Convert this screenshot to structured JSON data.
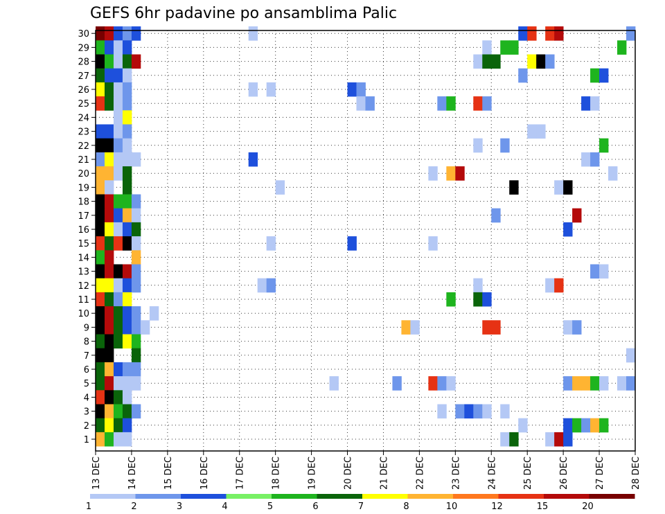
{
  "chart_data": {
    "type": "heatmap",
    "title": "GEFS 6hr padavine po ansamblima Palic",
    "y_labels": [
      "1",
      "2",
      "3",
      "4",
      "5",
      "6",
      "7",
      "8",
      "9",
      "10",
      "11",
      "12",
      "13",
      "14",
      "15",
      "16",
      "17",
      "18",
      "19",
      "20",
      "21",
      "22",
      "23",
      "24",
      "25",
      "26",
      "27",
      "28",
      "29",
      "30"
    ],
    "x_labels": [
      "13 DEC",
      "14 DEC",
      "15 DEC",
      "16 DEC",
      "17 DEC",
      "18 DEC",
      "19 DEC",
      "20 DEC",
      "21 DEC",
      "22 DEC",
      "23 DEC",
      "24 DEC",
      "25 DEC",
      "26 DEC",
      "27 DEC",
      "28 DEC"
    ],
    "x_range_days": [
      13,
      28
    ],
    "steps_per_day": 4,
    "grid": "dotted",
    "colorbar": {
      "labels": [
        "1",
        "2",
        "3",
        "4",
        "5",
        "6",
        "7",
        "8",
        "10",
        "12",
        "15",
        "20"
      ],
      "colors": [
        "#b4c8f5",
        "#6e96eb",
        "#1e50dc",
        "#78f064",
        "#1eb41e",
        "#0a640a",
        "#ffff00",
        "#ffb432",
        "#ff781e",
        "#e63214",
        "#b40a0a",
        "#780000"
      ]
    },
    "cells": [
      [
        30,
        0,
        12
      ],
      [
        30,
        1,
        11
      ],
      [
        30,
        2,
        3
      ],
      [
        30,
        3,
        2
      ],
      [
        30,
        4,
        3
      ],
      [
        30,
        17,
        1
      ],
      [
        30,
        47,
        3
      ],
      [
        30,
        48,
        10
      ],
      [
        30,
        50,
        10
      ],
      [
        30,
        51,
        11
      ],
      [
        30,
        59,
        2
      ],
      [
        29,
        0,
        5
      ],
      [
        29,
        1,
        3
      ],
      [
        29,
        2,
        1
      ],
      [
        29,
        3,
        3
      ],
      [
        29,
        43,
        1
      ],
      [
        29,
        45,
        5
      ],
      [
        29,
        46,
        5
      ],
      [
        29,
        58,
        5
      ],
      [
        28,
        0,
        13
      ],
      [
        28,
        1,
        5
      ],
      [
        28,
        2,
        1
      ],
      [
        28,
        3,
        6
      ],
      [
        28,
        4,
        11
      ],
      [
        28,
        42,
        1
      ],
      [
        28,
        43,
        6
      ],
      [
        28,
        44,
        6
      ],
      [
        28,
        48,
        7
      ],
      [
        28,
        49,
        14
      ],
      [
        28,
        50,
        2
      ],
      [
        27,
        0,
        6
      ],
      [
        27,
        1,
        3
      ],
      [
        27,
        2,
        3
      ],
      [
        27,
        3,
        1
      ],
      [
        27,
        47,
        2
      ],
      [
        27,
        55,
        5
      ],
      [
        27,
        56,
        3
      ],
      [
        26,
        0,
        7
      ],
      [
        26,
        1,
        6
      ],
      [
        26,
        2,
        1
      ],
      [
        26,
        3,
        2
      ],
      [
        26,
        17,
        1
      ],
      [
        26,
        19,
        1
      ],
      [
        26,
        28,
        3
      ],
      [
        26,
        29,
        2
      ],
      [
        25,
        0,
        10
      ],
      [
        25,
        1,
        6
      ],
      [
        25,
        2,
        1
      ],
      [
        25,
        3,
        2
      ],
      [
        25,
        29,
        1
      ],
      [
        25,
        30,
        2
      ],
      [
        25,
        38,
        2
      ],
      [
        25,
        39,
        5
      ],
      [
        25,
        42,
        10
      ],
      [
        25,
        43,
        2
      ],
      [
        25,
        54,
        3
      ],
      [
        25,
        55,
        1
      ],
      [
        24,
        2,
        1
      ],
      [
        24,
        3,
        7
      ],
      [
        23,
        0,
        3
      ],
      [
        23,
        1,
        3
      ],
      [
        23,
        2,
        1
      ],
      [
        23,
        3,
        2
      ],
      [
        23,
        48,
        1
      ],
      [
        23,
        49,
        1
      ],
      [
        22,
        0,
        13
      ],
      [
        22,
        1,
        13
      ],
      [
        22,
        2,
        2
      ],
      [
        22,
        3,
        1
      ],
      [
        22,
        42,
        1
      ],
      [
        22,
        45,
        2
      ],
      [
        22,
        56,
        5
      ],
      [
        21,
        0,
        2
      ],
      [
        21,
        1,
        7
      ],
      [
        21,
        2,
        1
      ],
      [
        21,
        3,
        1
      ],
      [
        21,
        4,
        1
      ],
      [
        21,
        17,
        3
      ],
      [
        21,
        54,
        1
      ],
      [
        21,
        55,
        2
      ],
      [
        20,
        0,
        8
      ],
      [
        20,
        1,
        8
      ],
      [
        20,
        2,
        1
      ],
      [
        20,
        3,
        6
      ],
      [
        20,
        37,
        1
      ],
      [
        20,
        39,
        8
      ],
      [
        20,
        40,
        11
      ],
      [
        20,
        57,
        1
      ],
      [
        19,
        0,
        8
      ],
      [
        19,
        1,
        1
      ],
      [
        19,
        3,
        6
      ],
      [
        19,
        20,
        1
      ],
      [
        19,
        46,
        13
      ],
      [
        19,
        51,
        1
      ],
      [
        19,
        52,
        13
      ],
      [
        18,
        0,
        13
      ],
      [
        18,
        1,
        11
      ],
      [
        18,
        2,
        5
      ],
      [
        18,
        3,
        5
      ],
      [
        18,
        4,
        2
      ],
      [
        17,
        0,
        14
      ],
      [
        17,
        1,
        11
      ],
      [
        17,
        2,
        3
      ],
      [
        17,
        3,
        8
      ],
      [
        17,
        4,
        1
      ],
      [
        17,
        44,
        2
      ],
      [
        17,
        53,
        11
      ],
      [
        16,
        0,
        13
      ],
      [
        16,
        1,
        7
      ],
      [
        16,
        2,
        1
      ],
      [
        16,
        3,
        3
      ],
      [
        16,
        4,
        6
      ],
      [
        16,
        52,
        3
      ],
      [
        15,
        0,
        10
      ],
      [
        15,
        1,
        6
      ],
      [
        15,
        2,
        10
      ],
      [
        15,
        3,
        13
      ],
      [
        15,
        4,
        1
      ],
      [
        15,
        19,
        1
      ],
      [
        15,
        28,
        3
      ],
      [
        15,
        37,
        1
      ],
      [
        14,
        0,
        5
      ],
      [
        14,
        1,
        11
      ],
      [
        14,
        4,
        8
      ],
      [
        13,
        0,
        13
      ],
      [
        13,
        1,
        11
      ],
      [
        13,
        2,
        13
      ],
      [
        13,
        3,
        11
      ],
      [
        13,
        4,
        2
      ],
      [
        13,
        55,
        2
      ],
      [
        13,
        56,
        1
      ],
      [
        12,
        0,
        7
      ],
      [
        12,
        1,
        7
      ],
      [
        12,
        2,
        1
      ],
      [
        12,
        3,
        3
      ],
      [
        12,
        4,
        2
      ],
      [
        12,
        18,
        1
      ],
      [
        12,
        19,
        2
      ],
      [
        12,
        42,
        1
      ],
      [
        12,
        50,
        1
      ],
      [
        12,
        51,
        10
      ],
      [
        11,
        0,
        10
      ],
      [
        11,
        1,
        6
      ],
      [
        11,
        2,
        2
      ],
      [
        11,
        3,
        7
      ],
      [
        11,
        39,
        5
      ],
      [
        11,
        42,
        6
      ],
      [
        11,
        43,
        3
      ],
      [
        10,
        0,
        13
      ],
      [
        10,
        1,
        11
      ],
      [
        10,
        2,
        6
      ],
      [
        10,
        3,
        3
      ],
      [
        10,
        4,
        2
      ],
      [
        10,
        6,
        1
      ],
      [
        9,
        0,
        13
      ],
      [
        9,
        1,
        11
      ],
      [
        9,
        2,
        6
      ],
      [
        9,
        3,
        3
      ],
      [
        9,
        4,
        2
      ],
      [
        9,
        5,
        1
      ],
      [
        9,
        34,
        8
      ],
      [
        9,
        35,
        1
      ],
      [
        9,
        43,
        10
      ],
      [
        9,
        44,
        10
      ],
      [
        9,
        52,
        1
      ],
      [
        9,
        53,
        2
      ],
      [
        8,
        0,
        6
      ],
      [
        8,
        1,
        14
      ],
      [
        8,
        2,
        6
      ],
      [
        8,
        3,
        7
      ],
      [
        8,
        4,
        5
      ],
      [
        7,
        0,
        13
      ],
      [
        7,
        1,
        13
      ],
      [
        7,
        4,
        6
      ],
      [
        7,
        59,
        1
      ],
      [
        6,
        0,
        6
      ],
      [
        6,
        1,
        8
      ],
      [
        6,
        2,
        3
      ],
      [
        6,
        3,
        2
      ],
      [
        6,
        4,
        2
      ],
      [
        5,
        0,
        6
      ],
      [
        5,
        1,
        11
      ],
      [
        5,
        2,
        1
      ],
      [
        5,
        3,
        1
      ],
      [
        5,
        4,
        1
      ],
      [
        5,
        26,
        1
      ],
      [
        5,
        33,
        2
      ],
      [
        5,
        37,
        10
      ],
      [
        5,
        38,
        2
      ],
      [
        5,
        39,
        1
      ],
      [
        5,
        52,
        2
      ],
      [
        5,
        53,
        8
      ],
      [
        5,
        54,
        8
      ],
      [
        5,
        55,
        5
      ],
      [
        5,
        56,
        1
      ],
      [
        5,
        58,
        1
      ],
      [
        5,
        59,
        2
      ],
      [
        4,
        0,
        10
      ],
      [
        4,
        1,
        14
      ],
      [
        4,
        2,
        6
      ],
      [
        4,
        3,
        1
      ],
      [
        3,
        0,
        13
      ],
      [
        3,
        1,
        8
      ],
      [
        3,
        2,
        5
      ],
      [
        3,
        3,
        6
      ],
      [
        3,
        4,
        2
      ],
      [
        3,
        38,
        1
      ],
      [
        3,
        40,
        2
      ],
      [
        3,
        41,
        3
      ],
      [
        3,
        42,
        2
      ],
      [
        3,
        43,
        1
      ],
      [
        3,
        45,
        1
      ],
      [
        2,
        0,
        6
      ],
      [
        2,
        1,
        7
      ],
      [
        2,
        2,
        6
      ],
      [
        2,
        3,
        3
      ],
      [
        2,
        47,
        1
      ],
      [
        2,
        52,
        3
      ],
      [
        2,
        53,
        5
      ],
      [
        2,
        54,
        2
      ],
      [
        2,
        55,
        8
      ],
      [
        2,
        56,
        5
      ],
      [
        1,
        0,
        8
      ],
      [
        1,
        1,
        5
      ],
      [
        1,
        2,
        1
      ],
      [
        1,
        3,
        1
      ],
      [
        1,
        45,
        1
      ],
      [
        1,
        46,
        6
      ],
      [
        1,
        50,
        1
      ],
      [
        1,
        51,
        11
      ],
      [
        1,
        52,
        3
      ]
    ]
  }
}
